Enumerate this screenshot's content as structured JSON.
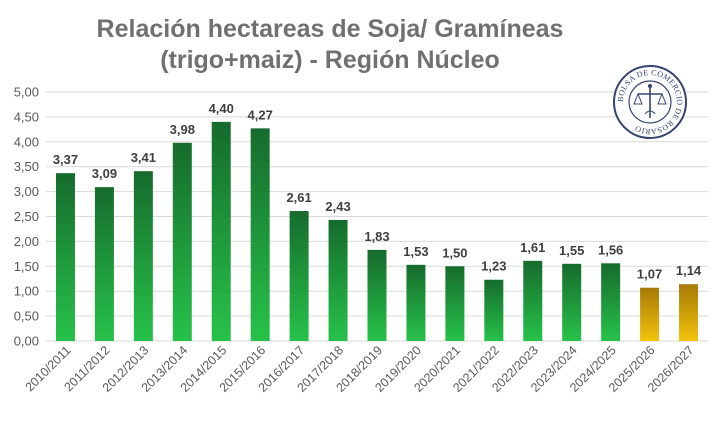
{
  "title_line1": "Relación hectareas de Soja/ Gramíneas",
  "title_line2": "(trigo+maiz) - Región Núcleo",
  "logo_text": "BOLSA DE COMERCIO DE ROSARIO",
  "colors": {
    "green_top": "#166b2c",
    "green_bottom": "#27c24a",
    "gold_top": "#a87a06",
    "gold_bottom": "#f3c20d",
    "grid": "#d9d9d9",
    "axis_text": "#595959",
    "label_text": "#3f3f3f",
    "title_text": "#707070"
  },
  "chart_data": {
    "type": "bar",
    "title": "Relación hectareas de Soja/ Gramíneas (trigo+maiz) - Región Núcleo",
    "categories": [
      "2010/2011",
      "2011/2012",
      "2012/2013",
      "2013/2014",
      "2014/2015",
      "2015/2016",
      "2016/2017",
      "2017/2018",
      "2018/2019",
      "2019/2020",
      "2020/2021",
      "2021/2022",
      "2022/2023",
      "2023/2024",
      "2024/2025",
      "2025/2026",
      "2026/2027"
    ],
    "values": [
      3.37,
      3.09,
      3.41,
      3.98,
      4.4,
      4.27,
      2.61,
      2.43,
      1.83,
      1.53,
      1.5,
      1.23,
      1.61,
      1.55,
      1.56,
      1.07,
      1.14
    ],
    "value_labels": [
      "3,37",
      "3,09",
      "3,41",
      "3,98",
      "4,40",
      "4,27",
      "2,61",
      "2,43",
      "1,83",
      "1,53",
      "1,50",
      "1,23",
      "1,61",
      "1,55",
      "1,56",
      "1,07",
      "1,14"
    ],
    "highlight": [
      "green",
      "green",
      "green",
      "green",
      "green",
      "green",
      "green",
      "green",
      "green",
      "green",
      "green",
      "green",
      "green",
      "green",
      "green",
      "gold",
      "gold"
    ],
    "ylim": [
      0,
      5
    ],
    "yticks": [
      0,
      0.5,
      1,
      1.5,
      2,
      2.5,
      3,
      3.5,
      4,
      4.5,
      5
    ],
    "ytick_labels": [
      "0,00",
      "0,50",
      "1,00",
      "1,50",
      "2,00",
      "2,50",
      "3,00",
      "3,50",
      "4,00",
      "4,50",
      "5,00"
    ],
    "grid": true,
    "xlabel": "",
    "ylabel": ""
  }
}
